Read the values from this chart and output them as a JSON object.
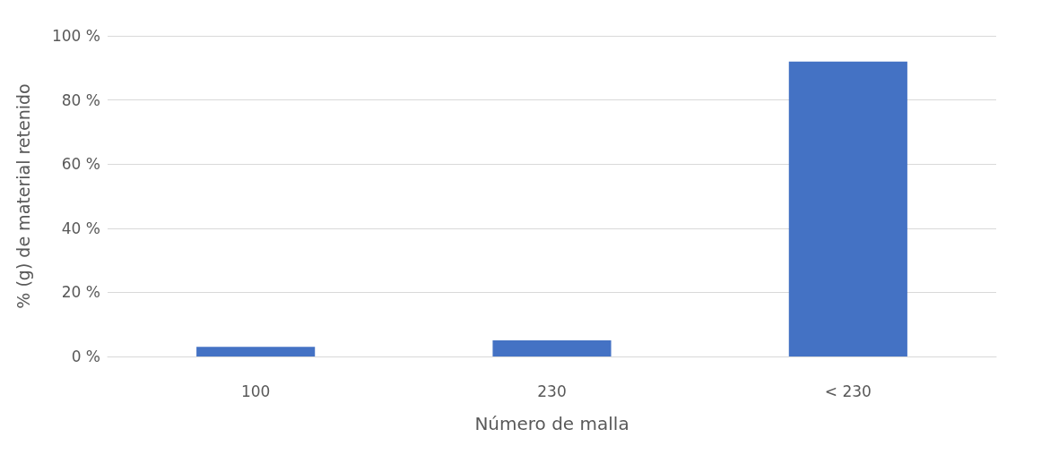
{
  "chart_data": {
    "type": "bar",
    "xlabel": "Número de malla",
    "ylabel": "% (g) de material retenido",
    "categories": [
      "100",
      "230",
      "< 230"
    ],
    "values": [
      3,
      5,
      92
    ],
    "color": "#4472c4",
    "ylim": [
      0,
      100
    ],
    "yticks": [
      {
        "value": 0,
        "label": "0 %"
      },
      {
        "value": 20,
        "label": "20 %"
      },
      {
        "value": 40,
        "label": "40 %"
      },
      {
        "value": 60,
        "label": "60 %"
      },
      {
        "value": 80,
        "label": "80 %"
      },
      {
        "value": 100,
        "label": "100 %"
      }
    ],
    "grid": "y"
  }
}
